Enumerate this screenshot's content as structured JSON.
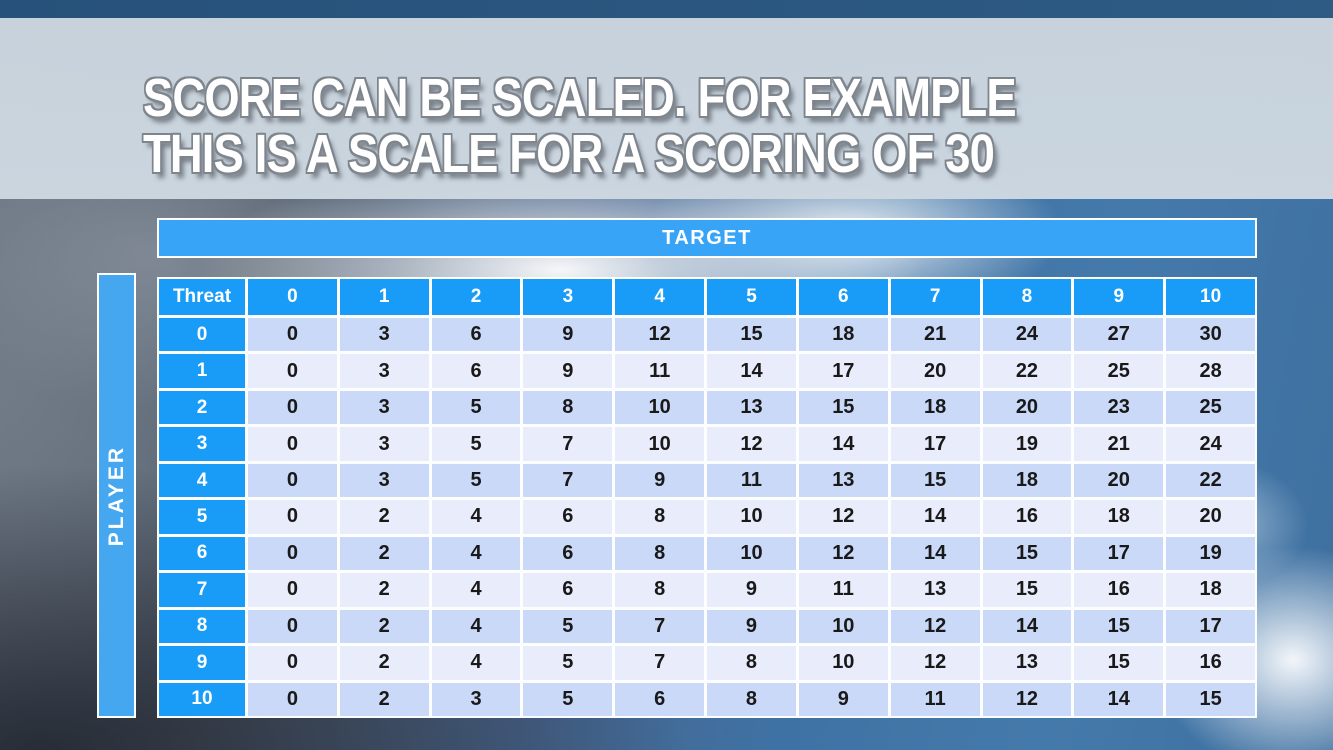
{
  "slide": {
    "title_line1": "SCORE CAN BE SCALED. FOR EXAMPLE",
    "title_line2": "THIS IS A SCALE FOR A SCORING OF 30"
  },
  "table": {
    "target_label": "TARGET",
    "player_label": "PLAYER",
    "corner_label": "Threat",
    "column_headers": [
      "0",
      "1",
      "2",
      "3",
      "4",
      "5",
      "6",
      "7",
      "8",
      "9",
      "10"
    ],
    "row_headers": [
      "0",
      "1",
      "2",
      "3",
      "4",
      "5",
      "6",
      "7",
      "8",
      "9",
      "10"
    ],
    "rows": [
      [
        0,
        3,
        6,
        9,
        12,
        15,
        18,
        21,
        24,
        27,
        30
      ],
      [
        0,
        3,
        6,
        9,
        11,
        14,
        17,
        20,
        22,
        25,
        28
      ],
      [
        0,
        3,
        5,
        8,
        10,
        13,
        15,
        18,
        20,
        23,
        25
      ],
      [
        0,
        3,
        5,
        7,
        10,
        12,
        14,
        17,
        19,
        21,
        24
      ],
      [
        0,
        3,
        5,
        7,
        9,
        11,
        13,
        15,
        18,
        20,
        22
      ],
      [
        0,
        2,
        4,
        6,
        8,
        10,
        12,
        14,
        16,
        18,
        20
      ],
      [
        0,
        2,
        4,
        6,
        8,
        10,
        12,
        14,
        15,
        17,
        19
      ],
      [
        0,
        2,
        4,
        6,
        8,
        9,
        11,
        13,
        15,
        16,
        18
      ],
      [
        0,
        2,
        4,
        5,
        7,
        9,
        10,
        12,
        14,
        15,
        17
      ],
      [
        0,
        2,
        4,
        5,
        7,
        8,
        10,
        12,
        13,
        15,
        16
      ],
      [
        0,
        2,
        3,
        5,
        6,
        8,
        9,
        11,
        12,
        14,
        15
      ]
    ]
  },
  "colors": {
    "header_blue": "#189cf7",
    "target_blue": "#38a4f8",
    "player_blue": "#45a7f0",
    "row_even": "#c9d9f7",
    "row_odd": "#e9edfb",
    "title_band": "#ccd6e0",
    "top_strip": "#2a5880",
    "sky_blue": "#4076a8",
    "storm_dark": "#343b47"
  }
}
